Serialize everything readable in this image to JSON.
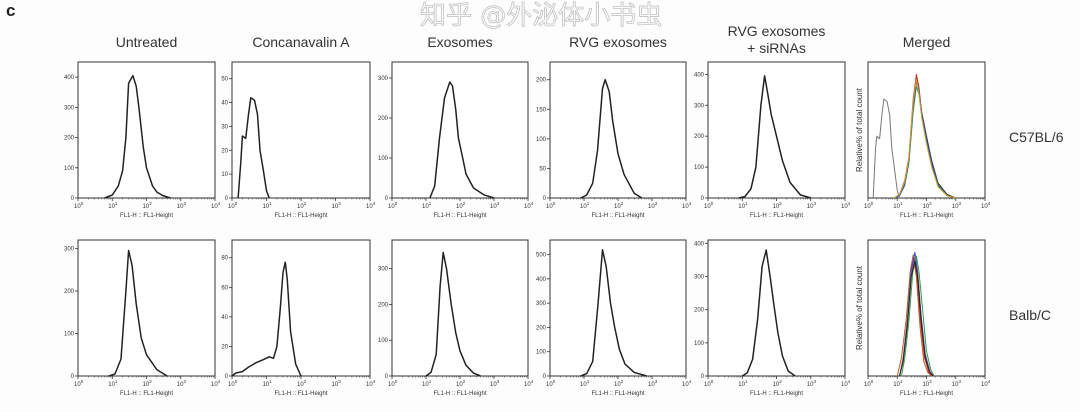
{
  "figure": {
    "panel_letter": "c",
    "column_titles": [
      "Untreated",
      "Concanavalin A",
      "Exosomes",
      "RVG exosomes",
      "RVG exosomes",
      "Merged"
    ],
    "column_title_line2": {
      "4": "+ siRNAs"
    },
    "row_labels": [
      "C57BL/6",
      "Balb/C"
    ],
    "watermark": "知乎 @外泌体小书虫"
  },
  "chart_data": [
    {
      "type": "line",
      "row": 0,
      "col": 0,
      "xlabel": "FL1-H :: FL1-Height",
      "xscale": "log",
      "xlim": [
        1,
        10000
      ],
      "xticks": [
        "10^0",
        "10^1",
        "10^2",
        "10^3",
        "10^4"
      ],
      "ylim": [
        0,
        450
      ],
      "yticks": [
        0,
        100,
        200,
        300,
        400
      ],
      "series": [
        {
          "color": "#222222",
          "x": [
            6,
            10,
            15,
            20,
            25,
            30,
            40,
            50,
            60,
            80,
            100,
            150,
            200,
            300,
            500
          ],
          "y": [
            0,
            10,
            40,
            90,
            200,
            380,
            405,
            370,
            300,
            170,
            100,
            40,
            20,
            8,
            0
          ]
        }
      ]
    },
    {
      "type": "line",
      "row": 0,
      "col": 1,
      "xlabel": "FL1-H :: FL1-Height",
      "xscale": "log",
      "xlim": [
        1,
        10000
      ],
      "xticks": [
        "10^0",
        "10^1",
        "10^2",
        "10^3",
        "10^4"
      ],
      "ylim": [
        0,
        57
      ],
      "yticks": [
        0,
        10,
        20,
        30,
        40,
        50
      ],
      "series": [
        {
          "color": "#222222",
          "x": [
            1.5,
            1.8,
            2,
            2.5,
            3,
            3.5,
            4.5,
            5.5,
            6.5,
            8,
            10,
            12
          ],
          "y": [
            0,
            15,
            26,
            25,
            35,
            42,
            41,
            35,
            20,
            12,
            3,
            0
          ]
        }
      ]
    },
    {
      "type": "line",
      "row": 0,
      "col": 2,
      "xlabel": "FL1-H :: FL1-Height",
      "xscale": "log",
      "xlim": [
        1,
        10000
      ],
      "xticks": [
        "10^0",
        "10^1",
        "10^2",
        "10^3",
        "10^4"
      ],
      "ylim": [
        0,
        340
      ],
      "yticks": [
        0,
        100,
        200,
        300
      ],
      "series": [
        {
          "color": "#222222",
          "x": [
            13,
            18,
            25,
            35,
            50,
            60,
            75,
            90,
            120,
            150,
            250,
            500,
            1000
          ],
          "y": [
            0,
            30,
            150,
            250,
            290,
            280,
            220,
            150,
            100,
            60,
            25,
            8,
            0
          ]
        }
      ]
    },
    {
      "type": "line",
      "row": 0,
      "col": 3,
      "xlabel": "FL1-H :: FL1-Height",
      "xscale": "log",
      "xlim": [
        1,
        10000
      ],
      "xticks": [
        "10^0",
        "10^1",
        "10^2",
        "10^3",
        "10^4"
      ],
      "ylim": [
        0,
        230
      ],
      "yticks": [
        0,
        50,
        100,
        150,
        200
      ],
      "series": [
        {
          "color": "#222222",
          "x": [
            8,
            12,
            18,
            25,
            35,
            42,
            55,
            70,
            100,
            150,
            300,
            500
          ],
          "y": [
            0,
            5,
            25,
            80,
            185,
            200,
            180,
            130,
            75,
            40,
            8,
            0
          ]
        }
      ]
    },
    {
      "type": "line",
      "row": 0,
      "col": 4,
      "xlabel": "FL1-H :: FL1-Height",
      "xscale": "log",
      "xlim": [
        1,
        10000
      ],
      "xticks": [
        "10^0",
        "10^1",
        "10^2",
        "10^3",
        "10^4"
      ],
      "ylim": [
        0,
        440
      ],
      "yticks": [
        0,
        100,
        200,
        300,
        400
      ],
      "series": [
        {
          "color": "#222222",
          "x": [
            8,
            12,
            18,
            25,
            35,
            45,
            55,
            70,
            100,
            150,
            250,
            500,
            1000
          ],
          "y": [
            0,
            5,
            30,
            100,
            300,
            395,
            340,
            270,
            200,
            120,
            50,
            10,
            0
          ]
        }
      ]
    },
    {
      "type": "line",
      "row": 0,
      "col": 5,
      "xlabel": "FL1-H :: FL1-Height",
      "ylabel": "Relative% of total count",
      "xscale": "log",
      "xlim": [
        1,
        10000
      ],
      "xticks": [
        "10^0",
        "10^1",
        "10^2",
        "10^3",
        "10^4"
      ],
      "ylim": [
        0,
        110
      ],
      "yticks": [],
      "series": [
        {
          "color": "#777777",
          "x": [
            1.5,
            1.8,
            2,
            2.5,
            3,
            3.5,
            4.5,
            5.5,
            6.5,
            8,
            10,
            12
          ],
          "y": [
            0,
            40,
            50,
            48,
            68,
            80,
            78,
            67,
            40,
            24,
            6,
            0
          ]
        },
        {
          "color": "#222222",
          "x": [
            8,
            12,
            18,
            25,
            35,
            45,
            55,
            70,
            100,
            150,
            250,
            500,
            1000
          ],
          "y": [
            0,
            3,
            12,
            30,
            75,
            98,
            86,
            68,
            50,
            30,
            12,
            3,
            0
          ]
        },
        {
          "color": "#d03030",
          "x": [
            8,
            12,
            18,
            25,
            35,
            45,
            55,
            70,
            100,
            150,
            250,
            500,
            1000
          ],
          "y": [
            0,
            3,
            14,
            33,
            80,
            100,
            90,
            66,
            46,
            26,
            10,
            2,
            0
          ]
        },
        {
          "color": "#30a050",
          "x": [
            8,
            12,
            18,
            25,
            35,
            45,
            55,
            70,
            100,
            150,
            250,
            500,
            1000
          ],
          "y": [
            0,
            2,
            10,
            28,
            70,
            90,
            84,
            64,
            46,
            28,
            11,
            2,
            0
          ]
        },
        {
          "color": "#3050c0",
          "x": [
            8,
            12,
            18,
            25,
            35,
            45,
            55,
            70,
            100,
            150,
            250,
            500,
            1000
          ],
          "y": [
            0,
            2,
            11,
            30,
            74,
            94,
            88,
            66,
            48,
            28,
            10,
            2,
            0
          ]
        },
        {
          "color": "#d0a020",
          "x": [
            8,
            12,
            18,
            25,
            35,
            45,
            55,
            70,
            100,
            150,
            250,
            500,
            1000
          ],
          "y": [
            0,
            3,
            13,
            32,
            78,
            96,
            85,
            64,
            44,
            25,
            9,
            2,
            0
          ]
        }
      ]
    },
    {
      "type": "line",
      "row": 1,
      "col": 0,
      "xlabel": "FL1-H :: FL1-Height",
      "xscale": "log",
      "xlim": [
        1,
        10000
      ],
      "xticks": [
        "10^0",
        "10^1",
        "10^2",
        "10^3",
        "10^4"
      ],
      "ylim": [
        0,
        320
      ],
      "yticks": [
        0,
        100,
        200,
        300
      ],
      "series": [
        {
          "color": "#222222",
          "x": [
            8,
            12,
            18,
            25,
            30,
            38,
            50,
            70,
            100,
            200,
            400
          ],
          "y": [
            0,
            5,
            40,
            200,
            295,
            260,
            170,
            90,
            50,
            15,
            0
          ]
        }
      ]
    },
    {
      "type": "line",
      "row": 1,
      "col": 1,
      "xlabel": "FL1-H :: FL1-Height",
      "xscale": "log",
      "xlim": [
        1,
        10000
      ],
      "xticks": [
        "10^0",
        "10^1",
        "10^2",
        "10^3",
        "10^4"
      ],
      "ylim": [
        0,
        92
      ],
      "yticks": [
        0,
        20,
        40,
        60,
        80
      ],
      "series": [
        {
          "color": "#222222",
          "x": [
            1,
            1.3,
            2,
            3,
            5,
            8,
            12,
            16,
            20,
            25,
            30,
            35,
            40,
            50,
            70,
            100
          ],
          "y": [
            0,
            2,
            3,
            6,
            9,
            11,
            13,
            12,
            20,
            45,
            70,
            77,
            65,
            30,
            8,
            0
          ]
        }
      ]
    },
    {
      "type": "line",
      "row": 1,
      "col": 2,
      "xlabel": "FL1-H :: FL1-Height",
      "xscale": "log",
      "xlim": [
        1,
        10000
      ],
      "xticks": [
        "10^0",
        "10^1",
        "10^2",
        "10^3",
        "10^4"
      ],
      "ylim": [
        0,
        380
      ],
      "yticks": [
        0,
        100,
        200,
        300
      ],
      "series": [
        {
          "color": "#222222",
          "x": [
            10,
            14,
            20,
            26,
            32,
            40,
            55,
            75,
            100,
            150,
            250,
            400
          ],
          "y": [
            0,
            10,
            60,
            250,
            345,
            300,
            200,
            120,
            70,
            30,
            8,
            0
          ]
        }
      ]
    },
    {
      "type": "line",
      "row": 1,
      "col": 3,
      "xlabel": "FL1-H :: FL1-Height",
      "xscale": "log",
      "xlim": [
        1,
        10000
      ],
      "xticks": [
        "10^0",
        "10^1",
        "10^2",
        "10^3",
        "10^4"
      ],
      "ylim": [
        0,
        560
      ],
      "yticks": [
        0,
        100,
        200,
        300,
        400,
        500
      ],
      "series": [
        {
          "color": "#222222",
          "x": [
            8,
            12,
            18,
            26,
            35,
            45,
            60,
            80,
            110,
            160,
            300,
            700
          ],
          "y": [
            0,
            10,
            60,
            300,
            520,
            450,
            300,
            200,
            110,
            50,
            15,
            0
          ]
        }
      ]
    },
    {
      "type": "line",
      "row": 1,
      "col": 4,
      "xlabel": "FL1-H :: FL1-Height",
      "xscale": "log",
      "xlim": [
        1,
        10000
      ],
      "xticks": [
        "10^0",
        "10^1",
        "10^2",
        "10^3",
        "10^4"
      ],
      "ylim": [
        0,
        410
      ],
      "yticks": [
        0,
        100,
        200,
        300,
        400
      ],
      "series": [
        {
          "color": "#222222",
          "x": [
            10,
            14,
            20,
            28,
            38,
            50,
            65,
            85,
            110,
            150,
            220,
            350
          ],
          "y": [
            0,
            10,
            50,
            170,
            330,
            380,
            300,
            210,
            130,
            60,
            15,
            0
          ]
        }
      ]
    },
    {
      "type": "line",
      "row": 1,
      "col": 5,
      "xlabel": "FL1-H :: FL1-Height",
      "ylabel": "Relative% of total count",
      "xscale": "log",
      "xlim": [
        1,
        10000
      ],
      "xticks": [
        "10^0",
        "10^1",
        "10^2",
        "10^3",
        "10^4"
      ],
      "ylim": [
        0,
        110
      ],
      "yticks": [],
      "series": [
        {
          "color": "#c06020",
          "x": [
            10,
            14,
            20,
            28,
            35,
            45,
            60,
            80,
            110,
            150
          ],
          "y": [
            0,
            15,
            45,
            85,
            98,
            80,
            40,
            12,
            3,
            0
          ]
        },
        {
          "color": "#d03030",
          "x": [
            12,
            16,
            22,
            30,
            38,
            48,
            62,
            85,
            120,
            160
          ],
          "y": [
            0,
            15,
            45,
            85,
            96,
            80,
            45,
            15,
            3,
            0
          ]
        },
        {
          "color": "#3050c0",
          "x": [
            12,
            16,
            22,
            30,
            40,
            50,
            65,
            90,
            130,
            170
          ],
          "y": [
            0,
            14,
            44,
            86,
            100,
            84,
            50,
            18,
            4,
            0
          ]
        },
        {
          "color": "#30a050",
          "x": [
            14,
            18,
            25,
            34,
            45,
            55,
            75,
            100,
            140,
            180
          ],
          "y": [
            0,
            14,
            44,
            84,
            97,
            85,
            52,
            20,
            5,
            0
          ]
        },
        {
          "color": "#8a4fa0",
          "x": [
            12,
            16,
            22,
            30,
            40,
            50,
            65,
            90,
            130,
            170
          ],
          "y": [
            0,
            14,
            42,
            82,
            95,
            82,
            48,
            16,
            4,
            0
          ]
        },
        {
          "color": "#222222",
          "x": [
            12,
            16,
            22,
            30,
            40,
            50,
            65,
            90,
            130,
            170
          ],
          "y": [
            0,
            12,
            40,
            80,
            93,
            80,
            46,
            15,
            3,
            0
          ]
        }
      ]
    }
  ]
}
